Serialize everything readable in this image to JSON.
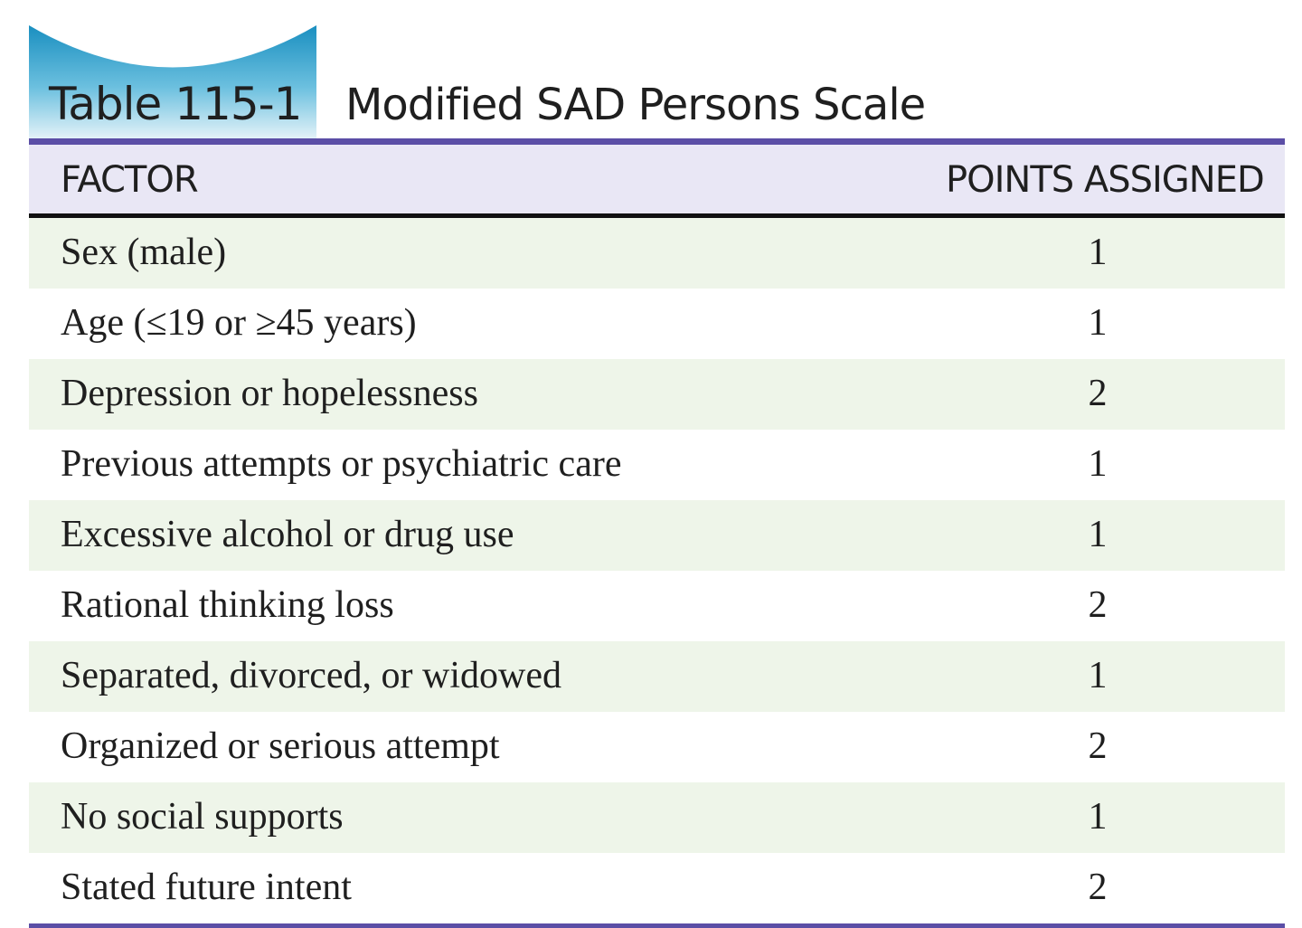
{
  "table": {
    "number": "Table 115-1",
    "title": "Modified SAD Persons Scale",
    "columns": {
      "factor": "FACTOR",
      "points": "POINTS ASSIGNED"
    },
    "rows": [
      {
        "factor": "Sex (male)",
        "points": "1"
      },
      {
        "factor": "Age (≤19 or ≥45 years)",
        "points": "1"
      },
      {
        "factor": "Depression or hopelessness",
        "points": "2"
      },
      {
        "factor": "Previous attempts or psychiatric care",
        "points": "1"
      },
      {
        "factor": "Excessive alcohol or drug use",
        "points": "1"
      },
      {
        "factor": "Rational thinking loss",
        "points": "2"
      },
      {
        "factor": "Separated, divorced, or widowed",
        "points": "1"
      },
      {
        "factor": "Organized or serious attempt",
        "points": "2"
      },
      {
        "factor": "No social supports",
        "points": "1"
      },
      {
        "factor": "Stated future intent",
        "points": "2"
      }
    ]
  },
  "colors": {
    "tab_gradient_top": "#1a8fc0",
    "tab_gradient_bottom": "#d9eef6",
    "rule": "#5b4ea6",
    "header_bg": "#e9e7f5",
    "row_shaded_bg": "#eef5e9"
  }
}
